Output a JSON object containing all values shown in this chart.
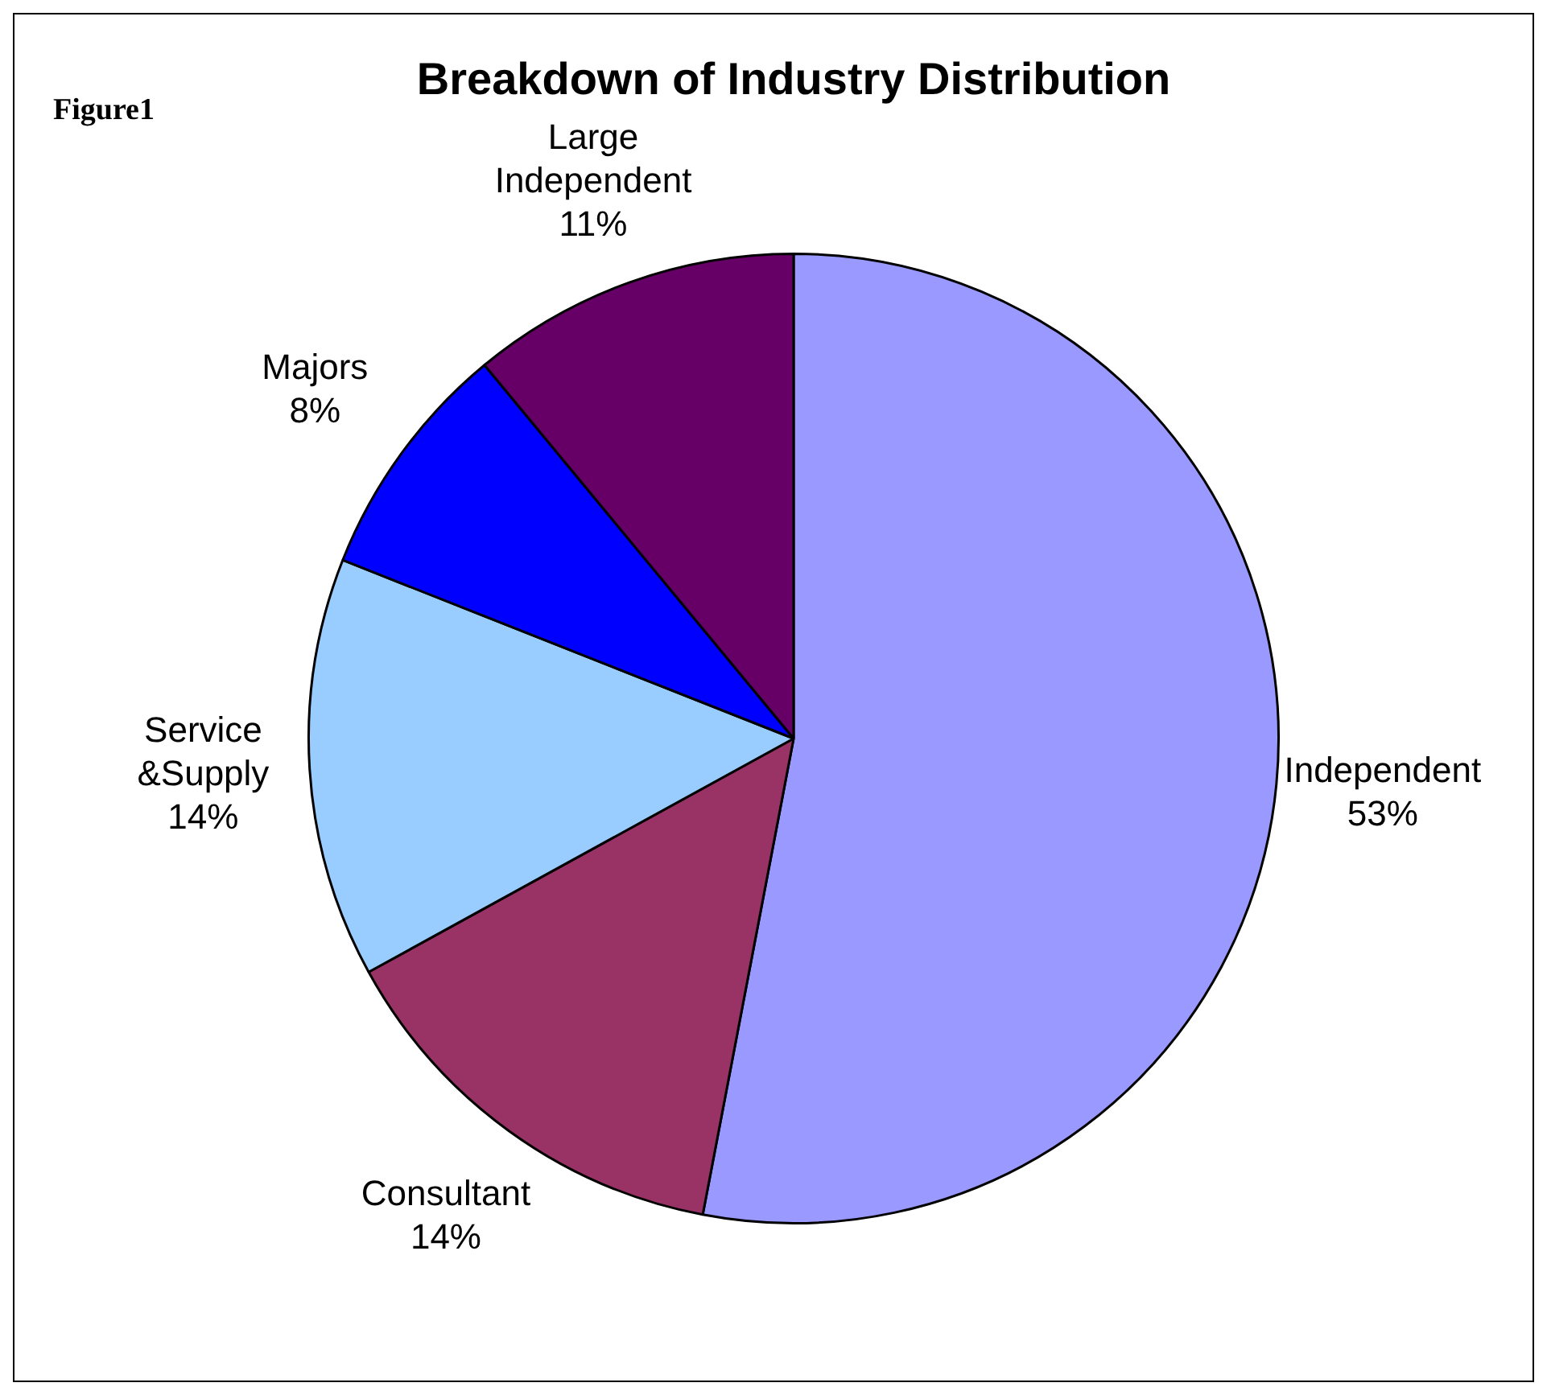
{
  "chart_data": {
    "type": "pie",
    "title": "Breakdown of Industry Distribution",
    "annotations": [
      "Figure1"
    ],
    "categories": [
      "Independent",
      "Consultant",
      "Service\n&Supply",
      "Majors",
      "Large\nIndependent"
    ],
    "values": [
      53,
      14,
      14,
      8,
      11
    ],
    "colors": [
      "#9999ff",
      "#993366",
      "#99ccff",
      "#0000ff",
      "#660066"
    ],
    "value_labels": [
      "53%",
      "14%",
      "14%",
      "8%",
      "11%"
    ],
    "legend": false
  }
}
